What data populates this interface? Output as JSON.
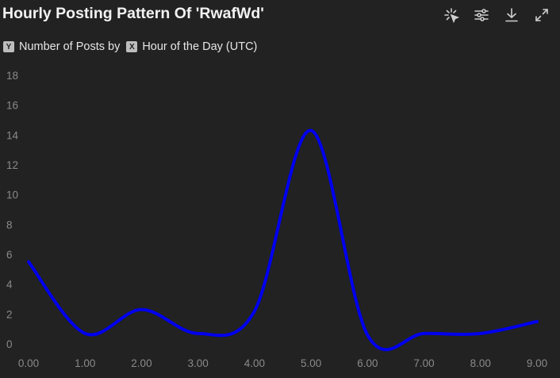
{
  "header": {
    "title": "Hourly Posting Pattern Of 'RwafWd'",
    "tools": [
      {
        "icon": "select-cursor-icon"
      },
      {
        "icon": "sliders-icon"
      },
      {
        "icon": "download-icon"
      },
      {
        "icon": "expand-icon"
      }
    ]
  },
  "legend": {
    "y_key": "Y",
    "y_label": "Number of Posts by",
    "x_key": "X",
    "x_label": "Hour of the Day (UTC)"
  },
  "colors": {
    "background": "#222222",
    "line": "#0000ee",
    "tick_text": "#8a8a8a"
  },
  "chart_data": {
    "type": "line",
    "title": "Hourly Posting Pattern Of 'RwafWd'",
    "xlabel": "Hour of the Day (UTC)",
    "ylabel": "Number of Posts by",
    "x": [
      0,
      1,
      2,
      3,
      4,
      5,
      6,
      7,
      8,
      9
    ],
    "x_tick_labels": [
      "0.00",
      "1.00",
      "2.00",
      "3.00",
      "4.00",
      "5.00",
      "6.00",
      "7.00",
      "8.00",
      "9.00"
    ],
    "y_ticks": [
      0,
      2,
      4,
      6,
      8,
      10,
      12,
      14,
      16,
      18
    ],
    "xlim": [
      0,
      9
    ],
    "ylim": [
      0,
      18
    ],
    "grid": false,
    "smooth": true,
    "series": [
      {
        "values": [
          5.5,
          0.7,
          2.3,
          0.7,
          2.2,
          14.3,
          0.6,
          0.7,
          0.7,
          1.5
        ]
      }
    ]
  }
}
